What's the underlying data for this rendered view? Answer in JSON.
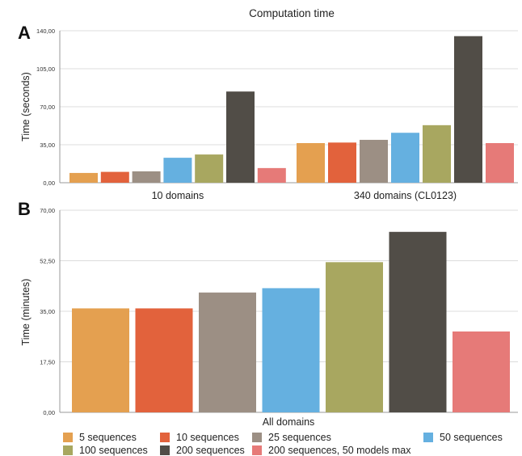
{
  "chart_data": [
    {
      "type": "bar",
      "panel_label": "A",
      "title": "Computation time",
      "ylabel": "Time (seconds)",
      "xlabel": "",
      "ylim": [
        0,
        140
      ],
      "yticks": [
        "0,00",
        "35,00",
        "70,00",
        "105,00",
        "140,00"
      ],
      "categories": [
        "10 domains",
        "340 domains (CL0123)"
      ],
      "grid": true,
      "series": [
        {
          "name": "5 sequences",
          "color": "#E4A050",
          "values": [
            9,
            36.5
          ]
        },
        {
          "name": "10 sequences",
          "color": "#E2623C",
          "values": [
            10,
            37
          ]
        },
        {
          "name": "25 sequences",
          "color": "#9C8F84",
          "values": [
            10.5,
            39.5
          ]
        },
        {
          "name": "50 sequences",
          "color": "#65B0E0",
          "values": [
            23,
            46
          ]
        },
        {
          "name": "100 sequences",
          "color": "#A8A760",
          "values": [
            26,
            53
          ]
        },
        {
          "name": "200 sequences",
          "color": "#514D47",
          "values": [
            84,
            135
          ]
        },
        {
          "name": "200 sequences, 50 models max",
          "color": "#E67A78",
          "values": [
            13.5,
            36.5
          ]
        }
      ]
    },
    {
      "type": "bar",
      "panel_label": "B",
      "title": "",
      "ylabel": "Time (minutes)",
      "xlabel": "All domains",
      "ylim": [
        0,
        70
      ],
      "yticks": [
        "0,00",
        "17,50",
        "35,00",
        "52,50",
        "70,00"
      ],
      "grid": true,
      "series": [
        {
          "name": "5 sequences",
          "color": "#E4A050",
          "values": [
            36
          ]
        },
        {
          "name": "10 sequences",
          "color": "#E2623C",
          "values": [
            36
          ]
        },
        {
          "name": "25 sequences",
          "color": "#9C8F84",
          "values": [
            41.5
          ]
        },
        {
          "name": "50 sequences",
          "color": "#65B0E0",
          "values": [
            43
          ]
        },
        {
          "name": "100 sequences",
          "color": "#A8A760",
          "values": [
            52
          ]
        },
        {
          "name": "200 sequences",
          "color": "#514D47",
          "values": [
            62.5
          ]
        },
        {
          "name": "200 sequences, 50 models max",
          "color": "#E67A78",
          "values": [
            28
          ]
        }
      ]
    }
  ],
  "legend": {
    "placement": "bottom",
    "items": [
      {
        "label": "5 sequences",
        "color": "#E4A050"
      },
      {
        "label": "10 sequences",
        "color": "#E2623C"
      },
      {
        "label": "25 sequences",
        "color": "#9C8F84"
      },
      {
        "label": "50 sequences",
        "color": "#65B0E0"
      },
      {
        "label": "100 sequences",
        "color": "#A8A760"
      },
      {
        "label": "200 sequences",
        "color": "#514D47"
      },
      {
        "label": "200 sequences, 50 models max",
        "color": "#E67A78"
      }
    ]
  }
}
